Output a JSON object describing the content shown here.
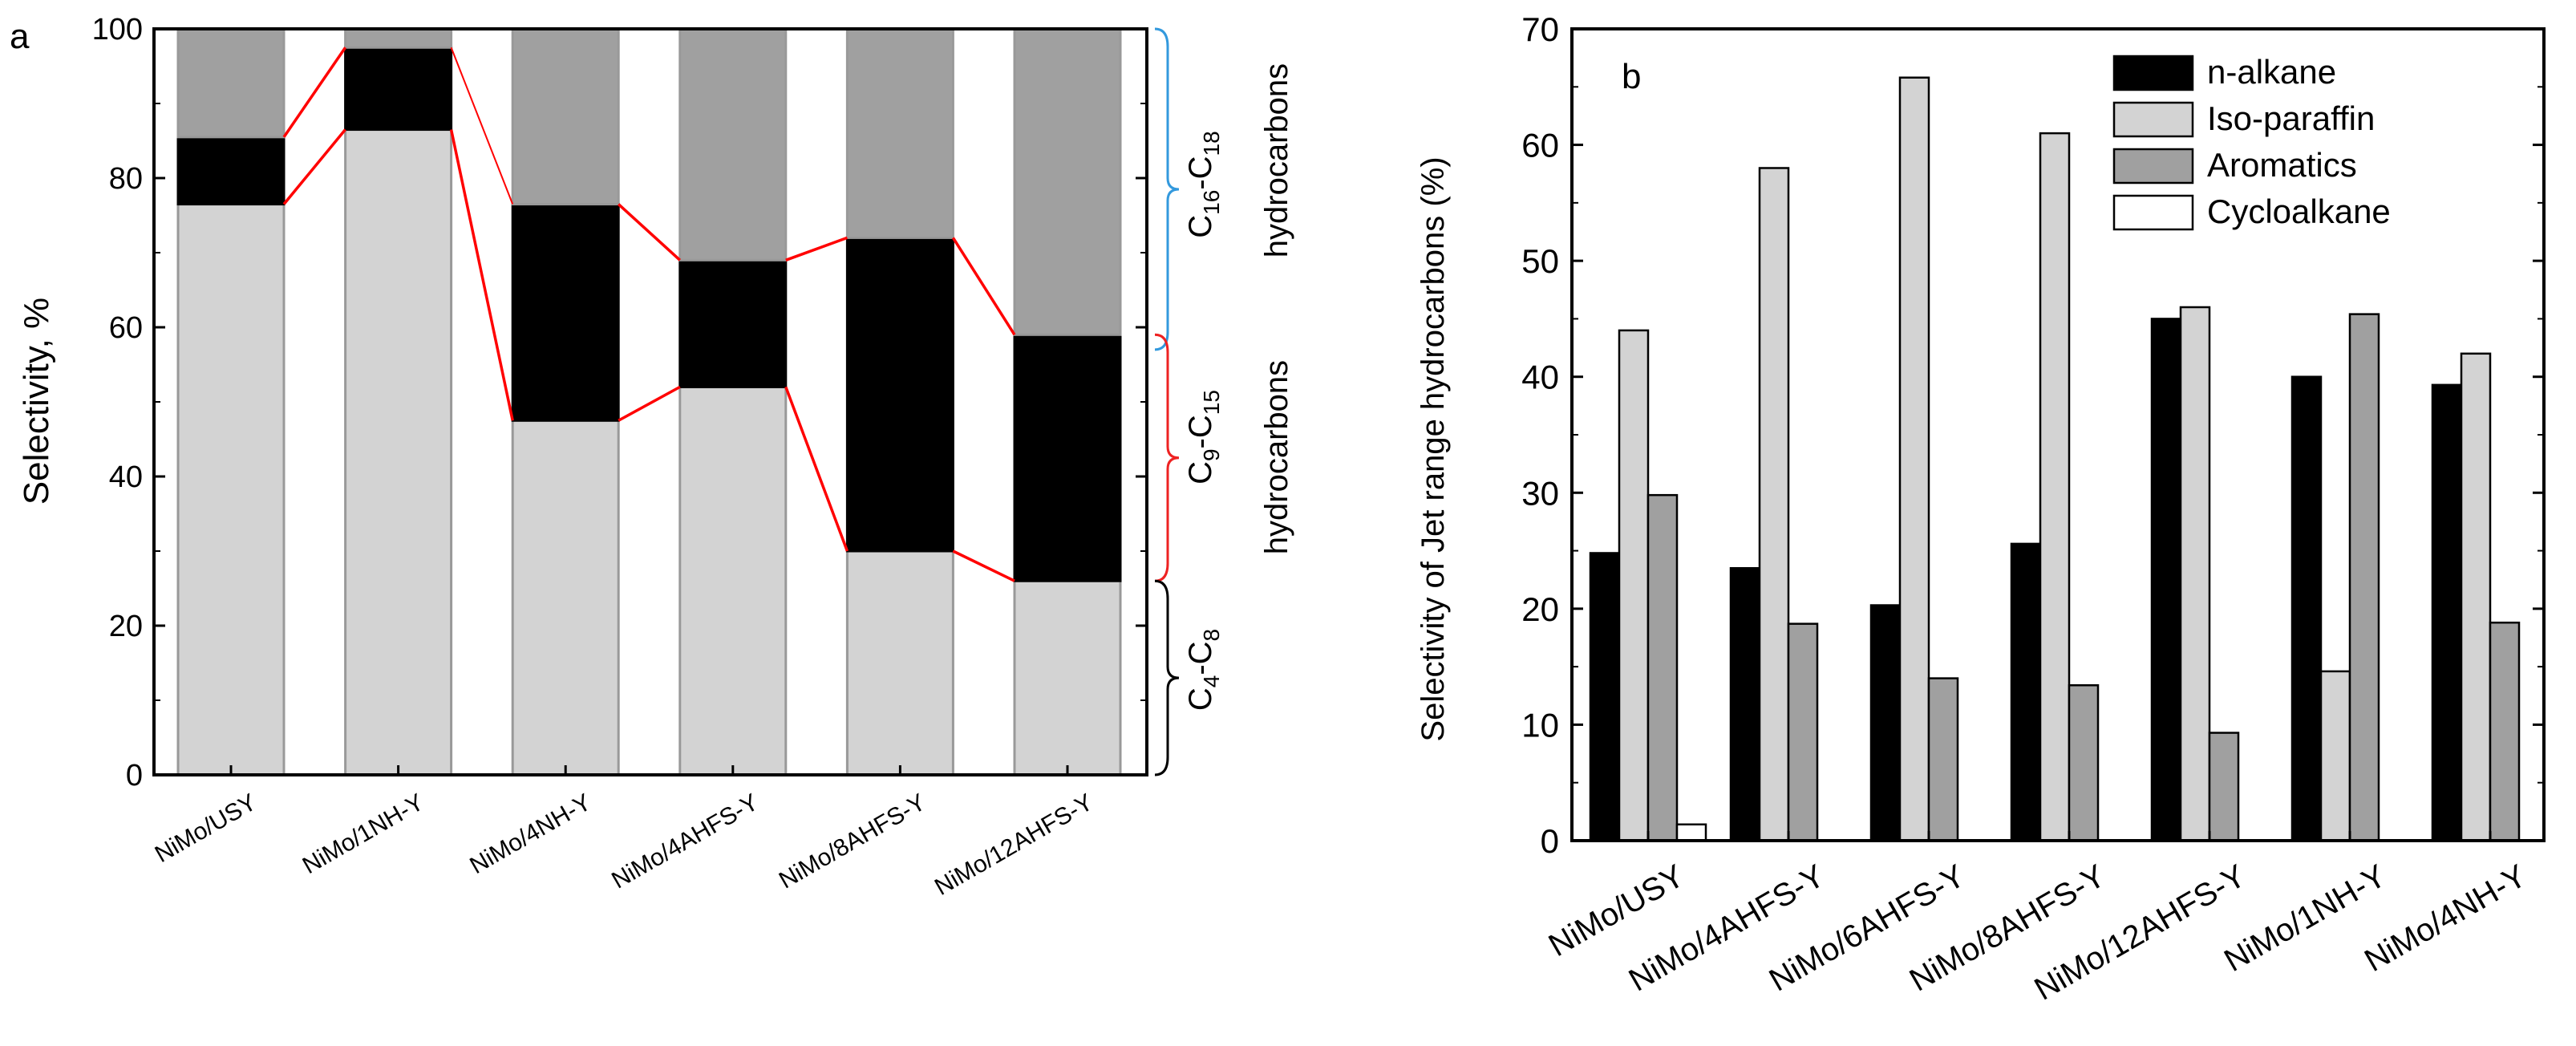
{
  "chart_data": [
    {
      "panel_label": "a",
      "type": "bar",
      "stacked": true,
      "categories": [
        "NiMo/USY",
        "NiMo/1NH-Y",
        "NiMo/4NH-Y",
        "NiMo/4AHFS-Y",
        "NiMo/8AHFS-Y",
        "NiMo/12AHFS-Y"
      ],
      "series": [
        {
          "name": "C4-C8",
          "color": "#d3d3d3",
          "values": [
            76.5,
            86.5,
            47.5,
            52.0,
            30.0,
            26.0
          ]
        },
        {
          "name": "C9-C15",
          "color": "#000000",
          "values": [
            9.0,
            11.0,
            29.0,
            17.0,
            42.0,
            33.0
          ]
        },
        {
          "name": "C16-C18",
          "color": "#a0a0a0",
          "values": [
            14.5,
            2.5,
            23.5,
            31.0,
            28.0,
            41.0
          ]
        }
      ],
      "ylabel": "Selectivity, %",
      "xlabel": "",
      "ylim": [
        0,
        100
      ],
      "yticks": [
        "0",
        "20",
        "40",
        "60",
        "80",
        "100"
      ],
      "annotations": [
        {
          "id": "c16",
          "pre": "C",
          "sub1": "16",
          "mid": "-C",
          "sub2": "18",
          "word": "hydrocarbons",
          "brace_color": "#3399dd",
          "range": [
            57,
            100
          ]
        },
        {
          "id": "c9",
          "pre": "C",
          "sub1": "9",
          "mid": "-C",
          "sub2": "15",
          "word": "hydrocarbons",
          "brace_color": "#ee2222",
          "range": [
            26,
            59
          ]
        },
        {
          "id": "c4",
          "pre": "C",
          "sub1": "4",
          "mid": "-C",
          "sub2": "8",
          "word": "",
          "brace_color": "#000000",
          "range": [
            0,
            26
          ]
        }
      ],
      "connector_color": "#ff0000"
    },
    {
      "panel_label": "b",
      "type": "bar",
      "categories": [
        "NiMo/USY",
        "NiMo/4AHFS-Y",
        "NiMo/6AHFS-Y",
        "NiMo/8AHFS-Y",
        "NiMo/12AHFS-Y",
        "NiMo/1NH-Y",
        "NiMo/4NH-Y"
      ],
      "series": [
        {
          "name": "n-alkane",
          "color": "#000000",
          "values": [
            24.8,
            23.5,
            20.3,
            25.6,
            45.0,
            40.0,
            39.3
          ]
        },
        {
          "name": "Iso-paraffin",
          "color": "#d3d3d3",
          "values": [
            44.0,
            58.0,
            65.8,
            61.0,
            46.0,
            14.6,
            42.0
          ]
        },
        {
          "name": "Aromatics",
          "color": "#a0a0a0",
          "values": [
            29.8,
            18.7,
            14.0,
            13.4,
            9.3,
            45.4,
            18.8
          ]
        },
        {
          "name": "Cycloalkane",
          "color": "#ffffff",
          "values": [
            1.4,
            0,
            0,
            0,
            0,
            0,
            0
          ]
        }
      ],
      "ylabel": "Selectivity of Jet range hydrocarbons (%)",
      "xlabel": "",
      "ylim": [
        0,
        70
      ],
      "yticks": [
        "0",
        "10",
        "20",
        "30",
        "40",
        "50",
        "60",
        "70"
      ],
      "legend_position": "top-right"
    }
  ]
}
